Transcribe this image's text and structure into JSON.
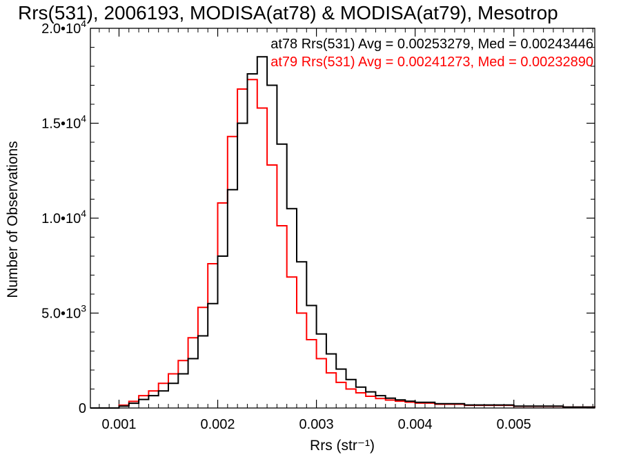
{
  "chart_data": {
    "type": "line",
    "title": "Rrs(531), 2006193, MODISA(at78) & MODISA(at79), Mesotrop",
    "xlabel": "Rrs (str⁻¹)",
    "ylabel": "Number of Observations",
    "xlim": [
      0.00071,
      0.00582
    ],
    "ylim": [
      0,
      20000
    ],
    "xticks": [
      0.001,
      0.002,
      0.003,
      0.004,
      0.005
    ],
    "xtick_labels": [
      "0.001",
      "0.002",
      "0.003",
      "0.004",
      "0.005"
    ],
    "yticks": [
      0,
      5000,
      10000,
      15000,
      20000
    ],
    "ytick_labels": [
      {
        "mant": "0",
        "exp": ""
      },
      {
        "mant": "5.0•10",
        "exp": "3"
      },
      {
        "mant": "1.0•10",
        "exp": "4"
      },
      {
        "mant": "1.5•10",
        "exp": "4"
      },
      {
        "mant": "2.0•10",
        "exp": "4"
      }
    ],
    "grid": false,
    "legend_placement": "top-right",
    "annotations": [
      {
        "text": "at78 Rrs(531) Avg = 0.00253279, Med = 0.00243446",
        "color": "#000000"
      },
      {
        "text": "at79 Rrs(531) Avg = 0.00241273, Med = 0.00232890",
        "color": "#ff0000"
      }
    ],
    "series": [
      {
        "color": "#000000",
        "x": [
          0.00071,
          0.001,
          0.0011,
          0.0012,
          0.0013,
          0.0014,
          0.0015,
          0.0016,
          0.0017,
          0.0018,
          0.0019,
          0.002,
          0.0021,
          0.0022,
          0.0023,
          0.0024,
          0.0025,
          0.0026,
          0.0027,
          0.0028,
          0.0029,
          0.003,
          0.0031,
          0.0032,
          0.0033,
          0.0034,
          0.0035,
          0.0036,
          0.0037,
          0.0038,
          0.0039,
          0.004,
          0.0042,
          0.0045,
          0.005,
          0.0055,
          0.00582
        ],
        "y": [
          0,
          100,
          250,
          450,
          650,
          900,
          1300,
          1800,
          2600,
          3800,
          5500,
          8000,
          11500,
          15000,
          17600,
          18500,
          17000,
          13900,
          10500,
          7700,
          5400,
          3900,
          2850,
          2050,
          1500,
          1100,
          850,
          650,
          520,
          430,
          360,
          300,
          230,
          160,
          100,
          50,
          30
        ]
      },
      {
        "color": "#ff0000",
        "x": [
          0.00071,
          0.001,
          0.0011,
          0.0012,
          0.0013,
          0.0014,
          0.0015,
          0.0016,
          0.0017,
          0.0018,
          0.0019,
          0.002,
          0.0021,
          0.0022,
          0.0023,
          0.0024,
          0.0025,
          0.0026,
          0.0027,
          0.0028,
          0.0029,
          0.003,
          0.0031,
          0.0032,
          0.0033,
          0.0034,
          0.0035,
          0.0036,
          0.0037,
          0.0038,
          0.0039,
          0.004,
          0.0042,
          0.0045,
          0.005,
          0.0055,
          0.00582
        ],
        "y": [
          0,
          150,
          350,
          650,
          900,
          1300,
          1800,
          2500,
          3700,
          5300,
          7600,
          10800,
          14300,
          16800,
          17300,
          15800,
          12800,
          9600,
          6900,
          5000,
          3600,
          2600,
          1850,
          1350,
          1000,
          800,
          620,
          500,
          420,
          360,
          310,
          260,
          200,
          140,
          90,
          50,
          30
        ]
      }
    ]
  }
}
